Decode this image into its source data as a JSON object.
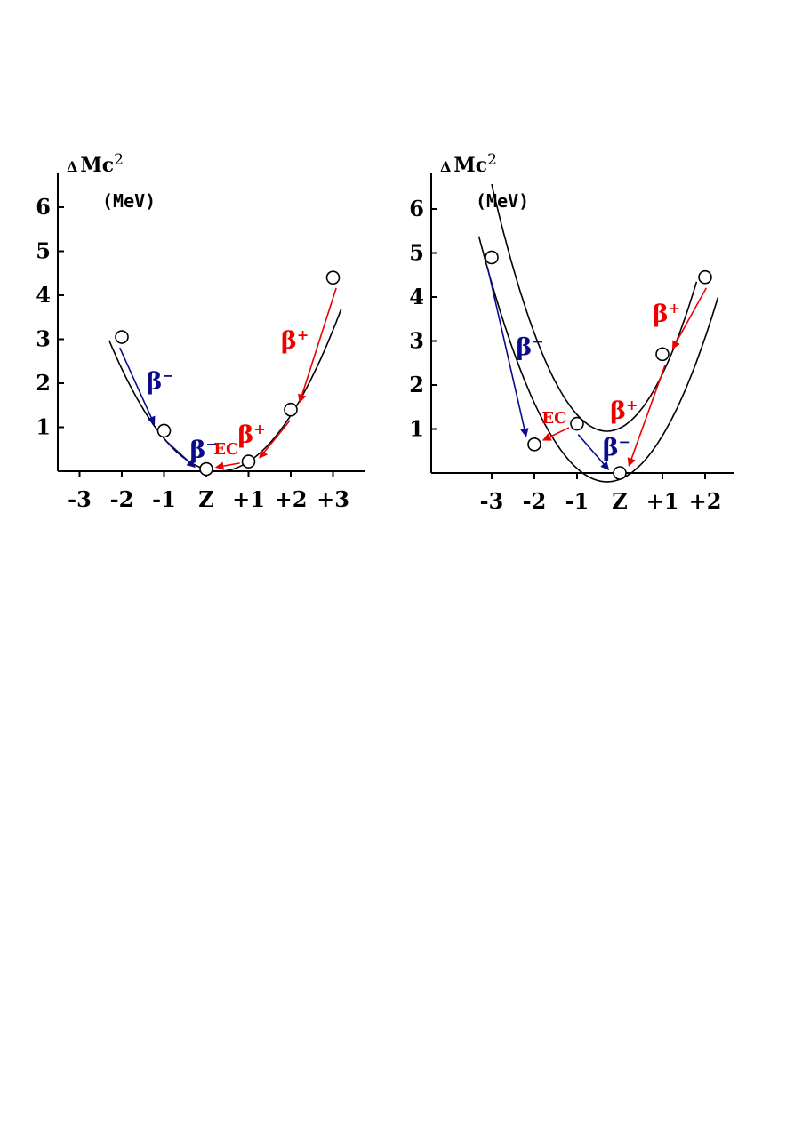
{
  "colors": {
    "beta_minus": "#0a0a8c",
    "beta_plus": "#ee0000",
    "ec": "#ee0000",
    "axis": "#000000",
    "curve": "#000000",
    "marker_fill": "#ffffff"
  },
  "chart_data": [
    {
      "type": "scatter",
      "ylabel": "ΔMc²",
      "ylabel_sym": "Δ",
      "ylabel_main": "Mc",
      "ylabel_sup": "2",
      "yunit": "(MeV)",
      "yticks": [
        "1",
        "2",
        "3",
        "4",
        "5",
        "6"
      ],
      "xticks": [
        "-3",
        "-2",
        "-1",
        "Z",
        "+1",
        "+2",
        "+3"
      ],
      "xlim": [
        -3.5,
        3.6
      ],
      "ylim": [
        0,
        6.8
      ],
      "parabolas": [
        {
          "vertex_x": 0.3,
          "vertex_y": 0.0,
          "a": 0.44,
          "x_range": [
            -2.3,
            3.2
          ]
        }
      ],
      "points": [
        {
          "x": -2,
          "y": 3.05
        },
        {
          "x": -1,
          "y": 0.92
        },
        {
          "x": 0,
          "y": 0.05
        },
        {
          "x": 1,
          "y": 0.22
        },
        {
          "x": 2,
          "y": 1.4
        },
        {
          "x": 3,
          "y": 4.4
        }
      ],
      "transitions": [
        {
          "from": 0,
          "to": 1,
          "type": "beta_minus",
          "label": "β",
          "sup": "−"
        },
        {
          "from": 1,
          "to": 2,
          "type": "beta_minus",
          "label": "β",
          "sup": "−"
        },
        {
          "from": 5,
          "to": 4,
          "type": "beta_plus",
          "label": "β",
          "sup": "+"
        },
        {
          "from": 4,
          "to": 3,
          "type": "beta_plus",
          "label": "β",
          "sup": "+"
        },
        {
          "from": 3,
          "to": 2,
          "type": "ec",
          "label": "EC",
          "sup": ""
        }
      ]
    },
    {
      "type": "scatter",
      "ylabel": "ΔMc²",
      "ylabel_sym": "Δ",
      "ylabel_main": "Mc",
      "ylabel_sup": "2",
      "yunit": "(MeV)",
      "yticks": [
        "1",
        "2",
        "3",
        "4",
        "5",
        "6"
      ],
      "xticks": [
        "-3",
        "-2",
        "-1",
        "Z",
        "+1",
        "+2"
      ],
      "xlim": [
        -4.2,
        2.7
      ],
      "ylim": [
        0,
        6.8
      ],
      "parabolas": [
        {
          "vertex_x": -0.3,
          "vertex_y": -0.2,
          "a": 0.62,
          "x_range": [
            -3.3,
            2.3
          ]
        },
        {
          "vertex_x": -0.3,
          "vertex_y": 0.95,
          "a": 0.77,
          "x_range": [
            -3.0,
            1.8
          ]
        }
      ],
      "points": [
        {
          "x": -3,
          "y": 4.9
        },
        {
          "x": -2,
          "y": 0.65
        },
        {
          "x": -1,
          "y": 1.12
        },
        {
          "x": 0,
          "y": 0.0
        },
        {
          "x": 1,
          "y": 2.7
        },
        {
          "x": 2,
          "y": 4.45
        }
      ],
      "transitions": [
        {
          "from": 0,
          "to": 1,
          "type": "beta_minus",
          "label": "β",
          "sup": "−"
        },
        {
          "from": 2,
          "to": 3,
          "type": "beta_minus",
          "label": "β",
          "sup": "−"
        },
        {
          "from": 2,
          "to": 1,
          "type": "ec",
          "label": "EC",
          "sup": ""
        },
        {
          "from": 5,
          "to": 4,
          "type": "beta_plus",
          "label": "β",
          "sup": "+"
        },
        {
          "from": 4,
          "to": 3,
          "type": "beta_plus",
          "label": "β",
          "sup": "+"
        }
      ]
    }
  ]
}
